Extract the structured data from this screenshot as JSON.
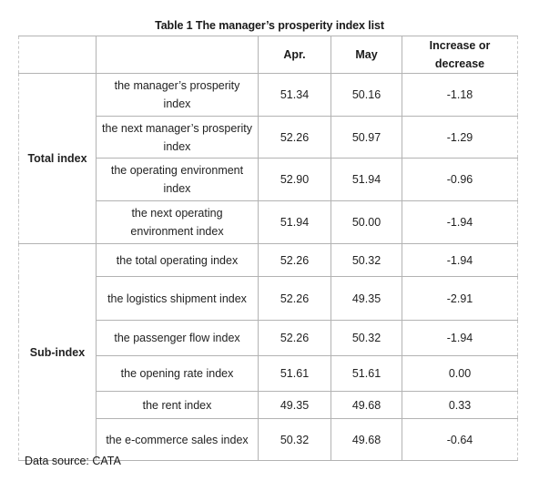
{
  "title": "Table 1 The manager’s prosperity index list",
  "headers": [
    "",
    "",
    "Apr.",
    "May",
    "Increase or decrease"
  ],
  "groups": [
    {
      "label": "Total index",
      "rows": [
        {
          "name": "the manager’s prosperity index",
          "apr": "51.34",
          "may": "50.16",
          "change": "-1.18"
        },
        {
          "name": "the next manager’s prosperity index",
          "apr": "52.26",
          "may": "50.97",
          "change": "-1.29"
        },
        {
          "name": "the operating environment index",
          "apr": "52.90",
          "may": "51.94",
          "change": "-0.96"
        },
        {
          "name": "the next operating environment index",
          "apr": "51.94",
          "may": "50.00",
          "change": "-1.94"
        }
      ]
    },
    {
      "label": "Sub-index",
      "rows": [
        {
          "name": "the total operating index",
          "apr": "52.26",
          "may": "50.32",
          "change": "-1.94"
        },
        {
          "name": "the logistics shipment index",
          "apr": "52.26",
          "may": "49.35",
          "change": "-2.91"
        },
        {
          "name": "the passenger flow index",
          "apr": "52.26",
          "may": "50.32",
          "change": "-1.94"
        },
        {
          "name": "the opening rate index",
          "apr": "51.61",
          "may": "51.61",
          "change": "0.00"
        },
        {
          "name": "the rent index",
          "apr": "49.35",
          "may": "49.68",
          "change": "0.33"
        },
        {
          "name": "the e-commerce sales index",
          "apr": "50.32",
          "may": "49.68",
          "change": "-0.64"
        }
      ]
    }
  ],
  "source": "Data source: CATA"
}
